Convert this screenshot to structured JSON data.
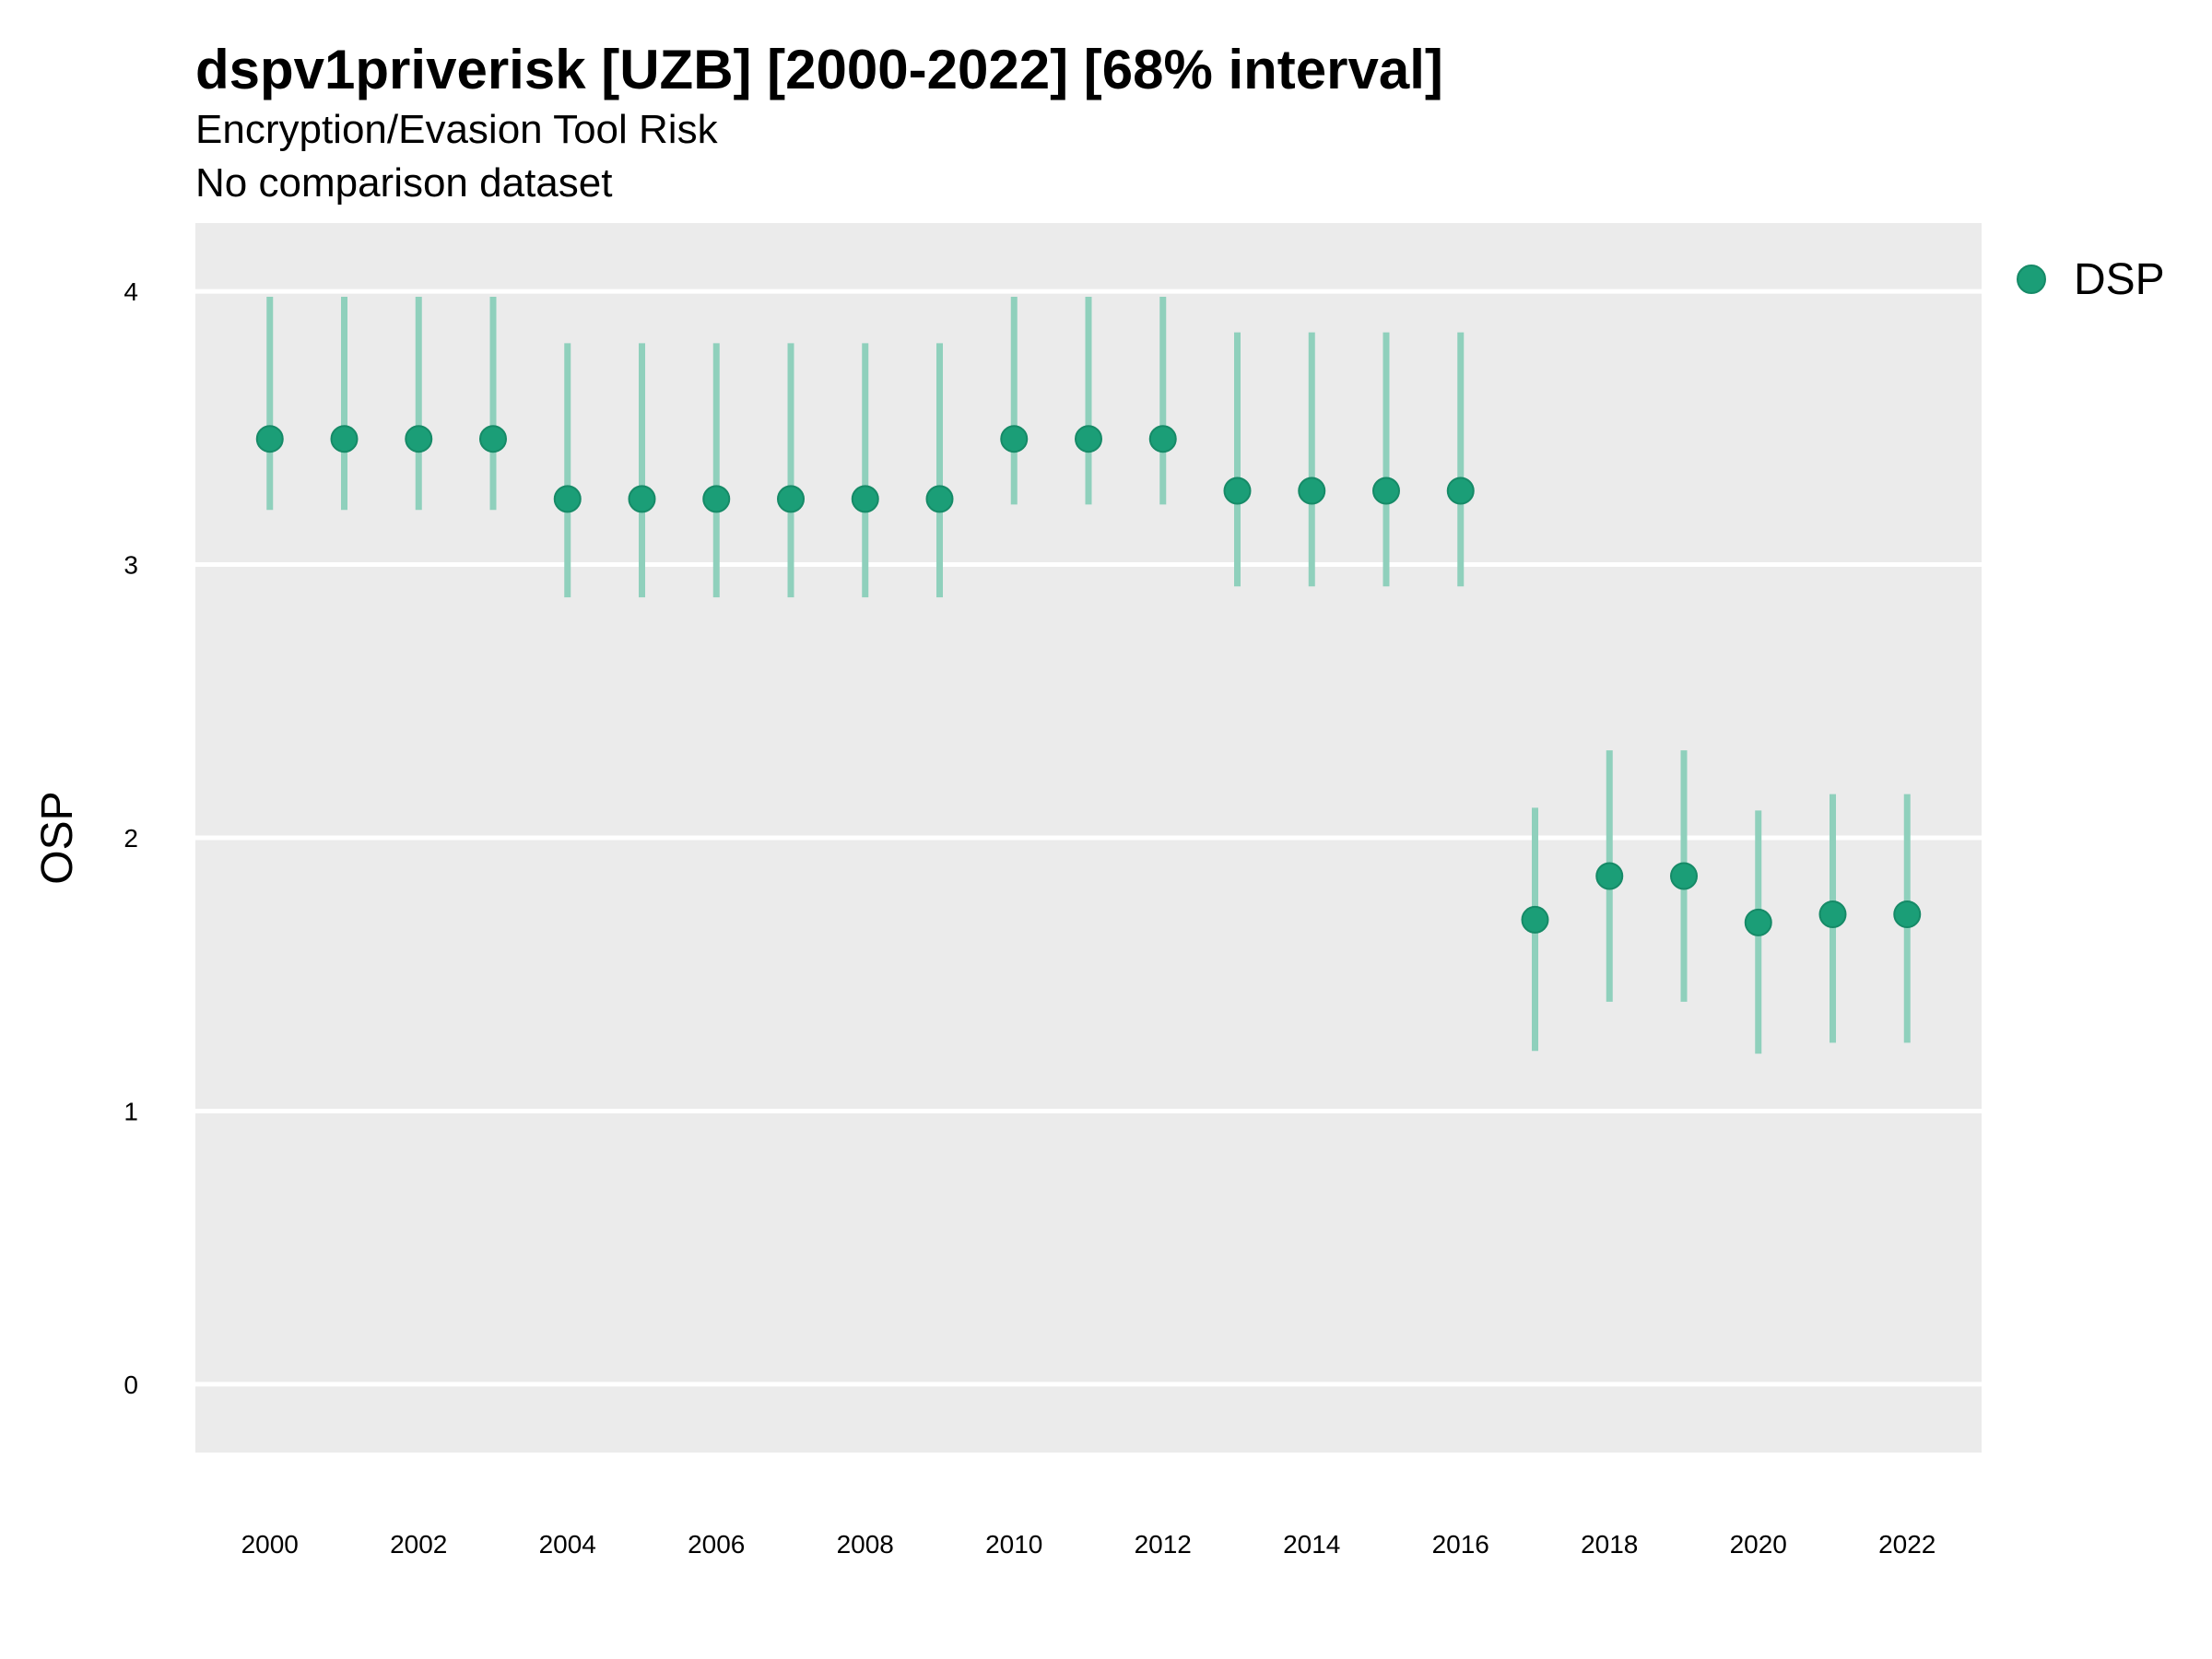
{
  "chart_data": {
    "type": "scatter",
    "title": "dspv1priverisk [UZB] [2000-2022] [68% interval]",
    "subtitle": "Encryption/Evasion Tool Risk",
    "caption_line": "No comparison dataset",
    "xlabel": "",
    "ylabel": "OSP",
    "xlim": [
      1999,
      2023
    ],
    "ylim": [
      -0.25,
      4.25
    ],
    "x_ticks": [
      "2000",
      "2002",
      "2004",
      "2006",
      "2008",
      "2010",
      "2012",
      "2014",
      "2016",
      "2018",
      "2020",
      "2022"
    ],
    "y_ticks": [
      "0",
      "1",
      "2",
      "3",
      "4"
    ],
    "grid": true,
    "legend_position": "right",
    "colors": {
      "point": "#1b9e77",
      "interval": "#8fd0bc",
      "panel": "#ebebeb",
      "gridline": "#ffffff"
    },
    "series": [
      {
        "name": "DSP",
        "x": [
          2000,
          2001,
          2002,
          2003,
          2004,
          2005,
          2006,
          2007,
          2008,
          2009,
          2010,
          2011,
          2012,
          2013,
          2014,
          2015,
          2016,
          2017,
          2018,
          2019,
          2020,
          2021,
          2022
        ],
        "y": [
          3.46,
          3.46,
          3.46,
          3.46,
          3.24,
          3.24,
          3.24,
          3.24,
          3.24,
          3.24,
          3.46,
          3.46,
          3.46,
          3.27,
          3.27,
          3.27,
          3.27,
          1.7,
          1.86,
          1.86,
          1.69,
          1.72,
          1.72
        ],
        "lower": [
          3.2,
          3.2,
          3.2,
          3.2,
          2.88,
          2.88,
          2.88,
          2.88,
          2.88,
          2.88,
          3.22,
          3.22,
          3.22,
          2.92,
          2.92,
          2.92,
          2.92,
          1.22,
          1.4,
          1.4,
          1.21,
          1.25,
          1.25
        ],
        "upper": [
          3.98,
          3.98,
          3.98,
          3.98,
          3.81,
          3.81,
          3.81,
          3.81,
          3.81,
          3.81,
          3.98,
          3.98,
          3.98,
          3.85,
          3.85,
          3.85,
          3.85,
          2.11,
          2.32,
          2.32,
          2.1,
          2.16,
          2.16
        ]
      }
    ]
  }
}
